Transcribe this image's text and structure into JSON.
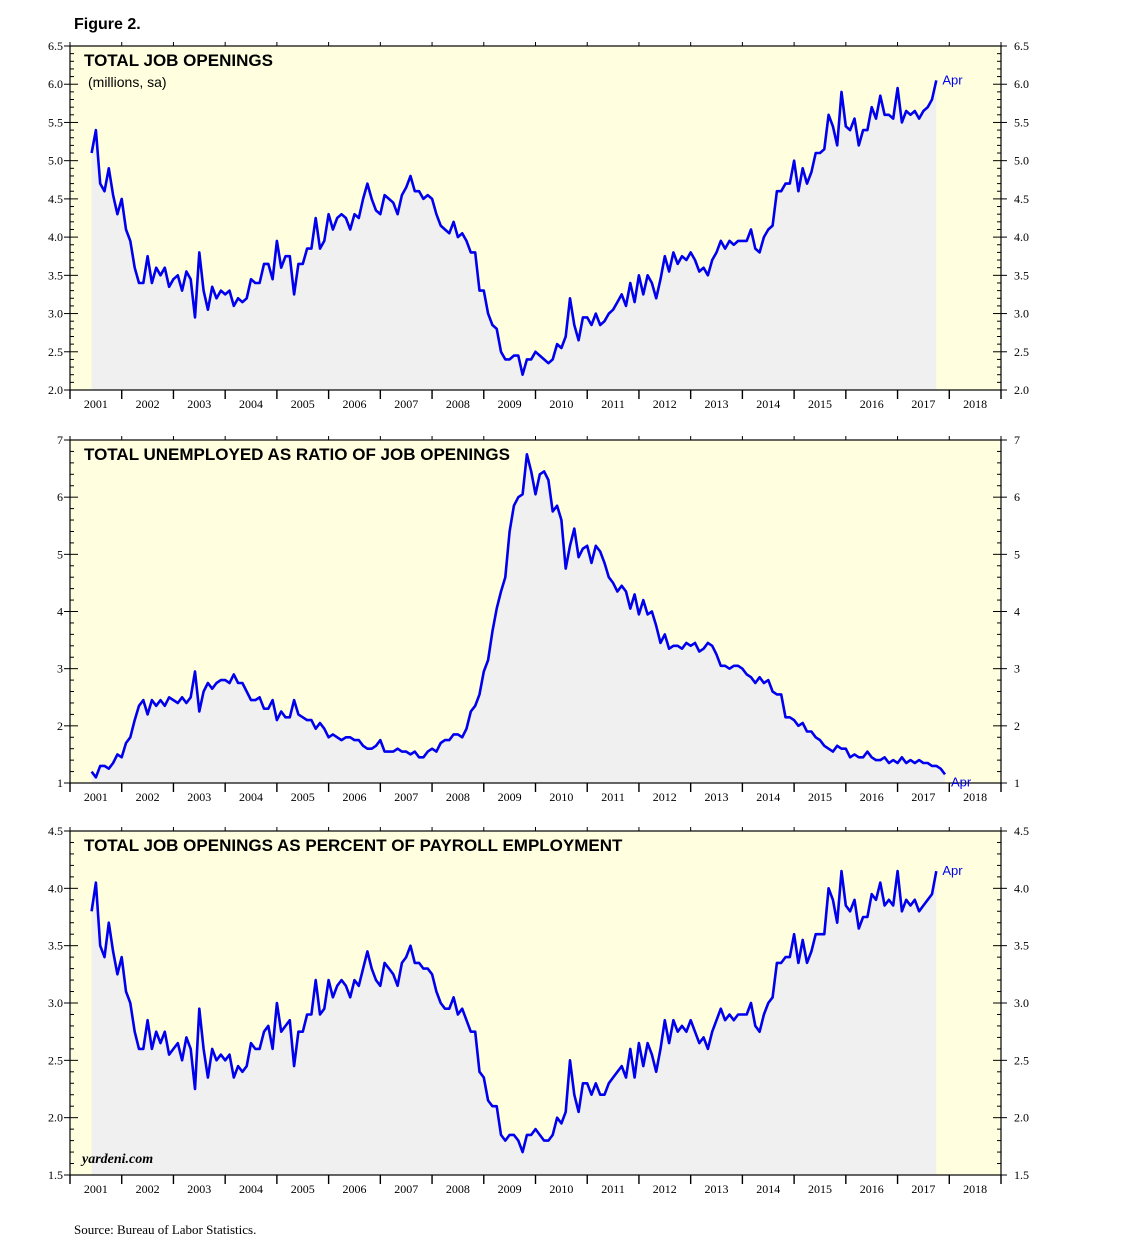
{
  "figure_title": "Figure 2.",
  "source": "Source: Bureau of Labor Statistics.",
  "watermark": "yardeni.com",
  "colors": {
    "line": "#0000ee",
    "plot_bg": "#ffffe0",
    "fill": "#f0f0f0",
    "axis": "#000000"
  },
  "chart_data": [
    {
      "type": "area",
      "title": "TOTAL JOB OPENINGS",
      "subtitle": "(millions, sa)",
      "end_label": "Apr",
      "x_labels": [
        "2001",
        "2002",
        "2003",
        "2004",
        "2005",
        "2006",
        "2007",
        "2008",
        "2009",
        "2010",
        "2011",
        "2012",
        "2013",
        "2014",
        "2015",
        "2016",
        "2017",
        "2018"
      ],
      "ylim": [
        2.0,
        6.5
      ],
      "yticks": [
        "2.0",
        "2.5",
        "3.0",
        "3.5",
        "4.0",
        "4.5",
        "5.0",
        "5.5",
        "6.0",
        "6.5"
      ],
      "x_start": "2000-12",
      "frequency": "monthly",
      "series": [
        {
          "name": "Total job openings",
          "values": [
            5.1,
            5.4,
            4.7,
            4.6,
            4.9,
            4.55,
            4.3,
            4.5,
            4.1,
            3.95,
            3.6,
            3.4,
            3.4,
            3.75,
            3.4,
            3.6,
            3.5,
            3.6,
            3.35,
            3.45,
            3.5,
            3.3,
            3.55,
            3.45,
            2.95,
            3.8,
            3.3,
            3.05,
            3.35,
            3.2,
            3.3,
            3.25,
            3.3,
            3.1,
            3.2,
            3.15,
            3.2,
            3.45,
            3.4,
            3.4,
            3.65,
            3.65,
            3.45,
            3.95,
            3.6,
            3.75,
            3.75,
            3.25,
            3.65,
            3.65,
            3.85,
            3.85,
            4.25,
            3.85,
            3.95,
            4.3,
            4.1,
            4.25,
            4.3,
            4.25,
            4.1,
            4.3,
            4.25,
            4.5,
            4.7,
            4.5,
            4.35,
            4.3,
            4.55,
            4.5,
            4.45,
            4.3,
            4.55,
            4.65,
            4.8,
            4.6,
            4.6,
            4.5,
            4.55,
            4.5,
            4.3,
            4.15,
            4.1,
            4.05,
            4.2,
            4.0,
            4.05,
            3.95,
            3.8,
            3.8,
            3.3,
            3.3,
            3.0,
            2.85,
            2.8,
            2.5,
            2.4,
            2.4,
            2.45,
            2.45,
            2.2,
            2.4,
            2.4,
            2.5,
            2.45,
            2.4,
            2.35,
            2.4,
            2.6,
            2.55,
            2.7,
            3.2,
            2.85,
            2.65,
            2.95,
            2.95,
            2.85,
            3.0,
            2.85,
            2.9,
            3.0,
            3.05,
            3.15,
            3.25,
            3.1,
            3.4,
            3.15,
            3.5,
            3.25,
            3.5,
            3.4,
            3.2,
            3.45,
            3.75,
            3.55,
            3.8,
            3.65,
            3.75,
            3.7,
            3.8,
            3.7,
            3.55,
            3.6,
            3.5,
            3.7,
            3.8,
            3.95,
            3.85,
            3.95,
            3.9,
            3.95,
            3.95,
            3.95,
            4.1,
            3.85,
            3.8,
            4.0,
            4.1,
            4.15,
            4.6,
            4.6,
            4.7,
            4.7,
            5.0,
            4.6,
            4.9,
            4.7,
            4.85,
            5.1,
            5.1,
            5.15,
            5.6,
            5.45,
            5.2,
            5.9,
            5.45,
            5.4,
            5.55,
            5.2,
            5.4,
            5.4,
            5.7,
            5.55,
            5.85,
            5.6,
            5.6,
            5.55,
            5.95,
            5.5,
            5.65,
            5.6,
            5.65,
            5.55,
            5.65,
            5.7,
            5.8,
            6.05
          ]
        }
      ]
    },
    {
      "type": "area",
      "title": "TOTAL UNEMPLOYED AS RATIO OF JOB OPENINGS",
      "end_label": "Apr",
      "x_labels": [
        "2001",
        "2002",
        "2003",
        "2004",
        "2005",
        "2006",
        "2007",
        "2008",
        "2009",
        "2010",
        "2011",
        "2012",
        "2013",
        "2014",
        "2015",
        "2016",
        "2017",
        "2018"
      ],
      "ylim": [
        1,
        7
      ],
      "yticks": [
        "1",
        "2",
        "3",
        "4",
        "5",
        "6",
        "7"
      ],
      "x_start": "2000-12",
      "frequency": "monthly",
      "series": [
        {
          "name": "Unemployed per job opening",
          "values": [
            1.2,
            1.1,
            1.3,
            1.3,
            1.25,
            1.35,
            1.5,
            1.45,
            1.7,
            1.8,
            2.1,
            2.35,
            2.45,
            2.2,
            2.45,
            2.35,
            2.45,
            2.35,
            2.5,
            2.45,
            2.4,
            2.5,
            2.4,
            2.5,
            2.95,
            2.25,
            2.6,
            2.75,
            2.65,
            2.75,
            2.8,
            2.8,
            2.75,
            2.9,
            2.75,
            2.75,
            2.6,
            2.45,
            2.45,
            2.5,
            2.3,
            2.3,
            2.45,
            2.1,
            2.25,
            2.15,
            2.15,
            2.45,
            2.2,
            2.15,
            2.1,
            2.1,
            1.95,
            2.05,
            1.95,
            1.8,
            1.85,
            1.8,
            1.75,
            1.8,
            1.8,
            1.75,
            1.75,
            1.65,
            1.6,
            1.6,
            1.65,
            1.75,
            1.55,
            1.55,
            1.55,
            1.6,
            1.55,
            1.55,
            1.5,
            1.55,
            1.45,
            1.45,
            1.55,
            1.6,
            1.55,
            1.7,
            1.75,
            1.75,
            1.85,
            1.85,
            1.8,
            1.95,
            2.25,
            2.35,
            2.55,
            2.95,
            3.15,
            3.65,
            4.05,
            4.35,
            4.6,
            5.4,
            5.85,
            6.0,
            6.05,
            6.75,
            6.45,
            6.05,
            6.4,
            6.45,
            6.3,
            5.75,
            5.85,
            5.6,
            4.75,
            5.15,
            5.45,
            4.95,
            5.1,
            5.15,
            4.85,
            5.15,
            5.05,
            4.85,
            4.6,
            4.5,
            4.35,
            4.45,
            4.35,
            4.05,
            4.3,
            3.95,
            4.2,
            3.95,
            4.0,
            3.75,
            3.45,
            3.6,
            3.35,
            3.4,
            3.4,
            3.35,
            3.45,
            3.4,
            3.45,
            3.3,
            3.35,
            3.45,
            3.4,
            3.25,
            3.05,
            3.05,
            3.0,
            3.05,
            3.05,
            3.0,
            2.9,
            2.85,
            2.75,
            2.85,
            2.75,
            2.8,
            2.6,
            2.55,
            2.55,
            2.15,
            2.15,
            2.1,
            2.0,
            2.05,
            1.9,
            1.9,
            1.8,
            1.75,
            1.65,
            1.6,
            1.55,
            1.65,
            1.6,
            1.6,
            1.45,
            1.5,
            1.45,
            1.45,
            1.55,
            1.45,
            1.4,
            1.4,
            1.45,
            1.35,
            1.4,
            1.35,
            1.45,
            1.35,
            1.4,
            1.35,
            1.4,
            1.35,
            1.35,
            1.3,
            1.3,
            1.25,
            1.15
          ]
        }
      ]
    },
    {
      "type": "area",
      "title": "TOTAL JOB OPENINGS AS PERCENT OF PAYROLL EMPLOYMENT",
      "end_label": "Apr",
      "x_labels": [
        "2001",
        "2002",
        "2003",
        "2004",
        "2005",
        "2006",
        "2007",
        "2008",
        "2009",
        "2010",
        "2011",
        "2012",
        "2013",
        "2014",
        "2015",
        "2016",
        "2017",
        "2018"
      ],
      "ylim": [
        1.5,
        4.5
      ],
      "yticks": [
        "1.5",
        "2.0",
        "2.5",
        "3.0",
        "3.5",
        "4.0",
        "4.5"
      ],
      "x_start": "2000-12",
      "frequency": "monthly",
      "series": [
        {
          "name": "Job openings as % of payroll employment",
          "values": [
            3.8,
            4.05,
            3.5,
            3.4,
            3.7,
            3.45,
            3.25,
            3.4,
            3.1,
            3.0,
            2.75,
            2.6,
            2.6,
            2.85,
            2.6,
            2.75,
            2.65,
            2.75,
            2.55,
            2.6,
            2.65,
            2.5,
            2.7,
            2.6,
            2.25,
            2.95,
            2.6,
            2.35,
            2.6,
            2.5,
            2.55,
            2.5,
            2.55,
            2.35,
            2.45,
            2.4,
            2.45,
            2.65,
            2.6,
            2.6,
            2.75,
            2.8,
            2.6,
            3.0,
            2.75,
            2.8,
            2.85,
            2.45,
            2.75,
            2.75,
            2.9,
            2.9,
            3.2,
            2.9,
            2.95,
            3.2,
            3.05,
            3.15,
            3.2,
            3.15,
            3.05,
            3.2,
            3.15,
            3.3,
            3.45,
            3.3,
            3.2,
            3.15,
            3.35,
            3.3,
            3.25,
            3.15,
            3.35,
            3.4,
            3.5,
            3.35,
            3.35,
            3.3,
            3.3,
            3.25,
            3.1,
            3.0,
            2.95,
            2.95,
            3.05,
            2.9,
            2.95,
            2.85,
            2.75,
            2.75,
            2.4,
            2.35,
            2.15,
            2.1,
            2.1,
            1.85,
            1.8,
            1.85,
            1.85,
            1.8,
            1.7,
            1.85,
            1.85,
            1.9,
            1.85,
            1.8,
            1.8,
            1.85,
            2.0,
            1.95,
            2.05,
            2.5,
            2.2,
            2.05,
            2.3,
            2.3,
            2.2,
            2.3,
            2.2,
            2.2,
            2.3,
            2.35,
            2.4,
            2.45,
            2.35,
            2.6,
            2.35,
            2.65,
            2.45,
            2.65,
            2.55,
            2.4,
            2.6,
            2.85,
            2.65,
            2.85,
            2.75,
            2.8,
            2.75,
            2.85,
            2.75,
            2.65,
            2.7,
            2.6,
            2.75,
            2.85,
            2.95,
            2.85,
            2.9,
            2.85,
            2.9,
            2.9,
            2.9,
            3.0,
            2.8,
            2.75,
            2.9,
            3.0,
            3.05,
            3.35,
            3.35,
            3.4,
            3.4,
            3.6,
            3.35,
            3.55,
            3.35,
            3.45,
            3.6,
            3.6,
            3.6,
            4.0,
            3.9,
            3.7,
            4.15,
            3.85,
            3.8,
            3.9,
            3.65,
            3.75,
            3.75,
            3.95,
            3.9,
            4.05,
            3.85,
            3.9,
            3.85,
            4.15,
            3.8,
            3.9,
            3.85,
            3.9,
            3.8,
            3.85,
            3.9,
            3.95,
            4.15
          ]
        }
      ]
    }
  ]
}
